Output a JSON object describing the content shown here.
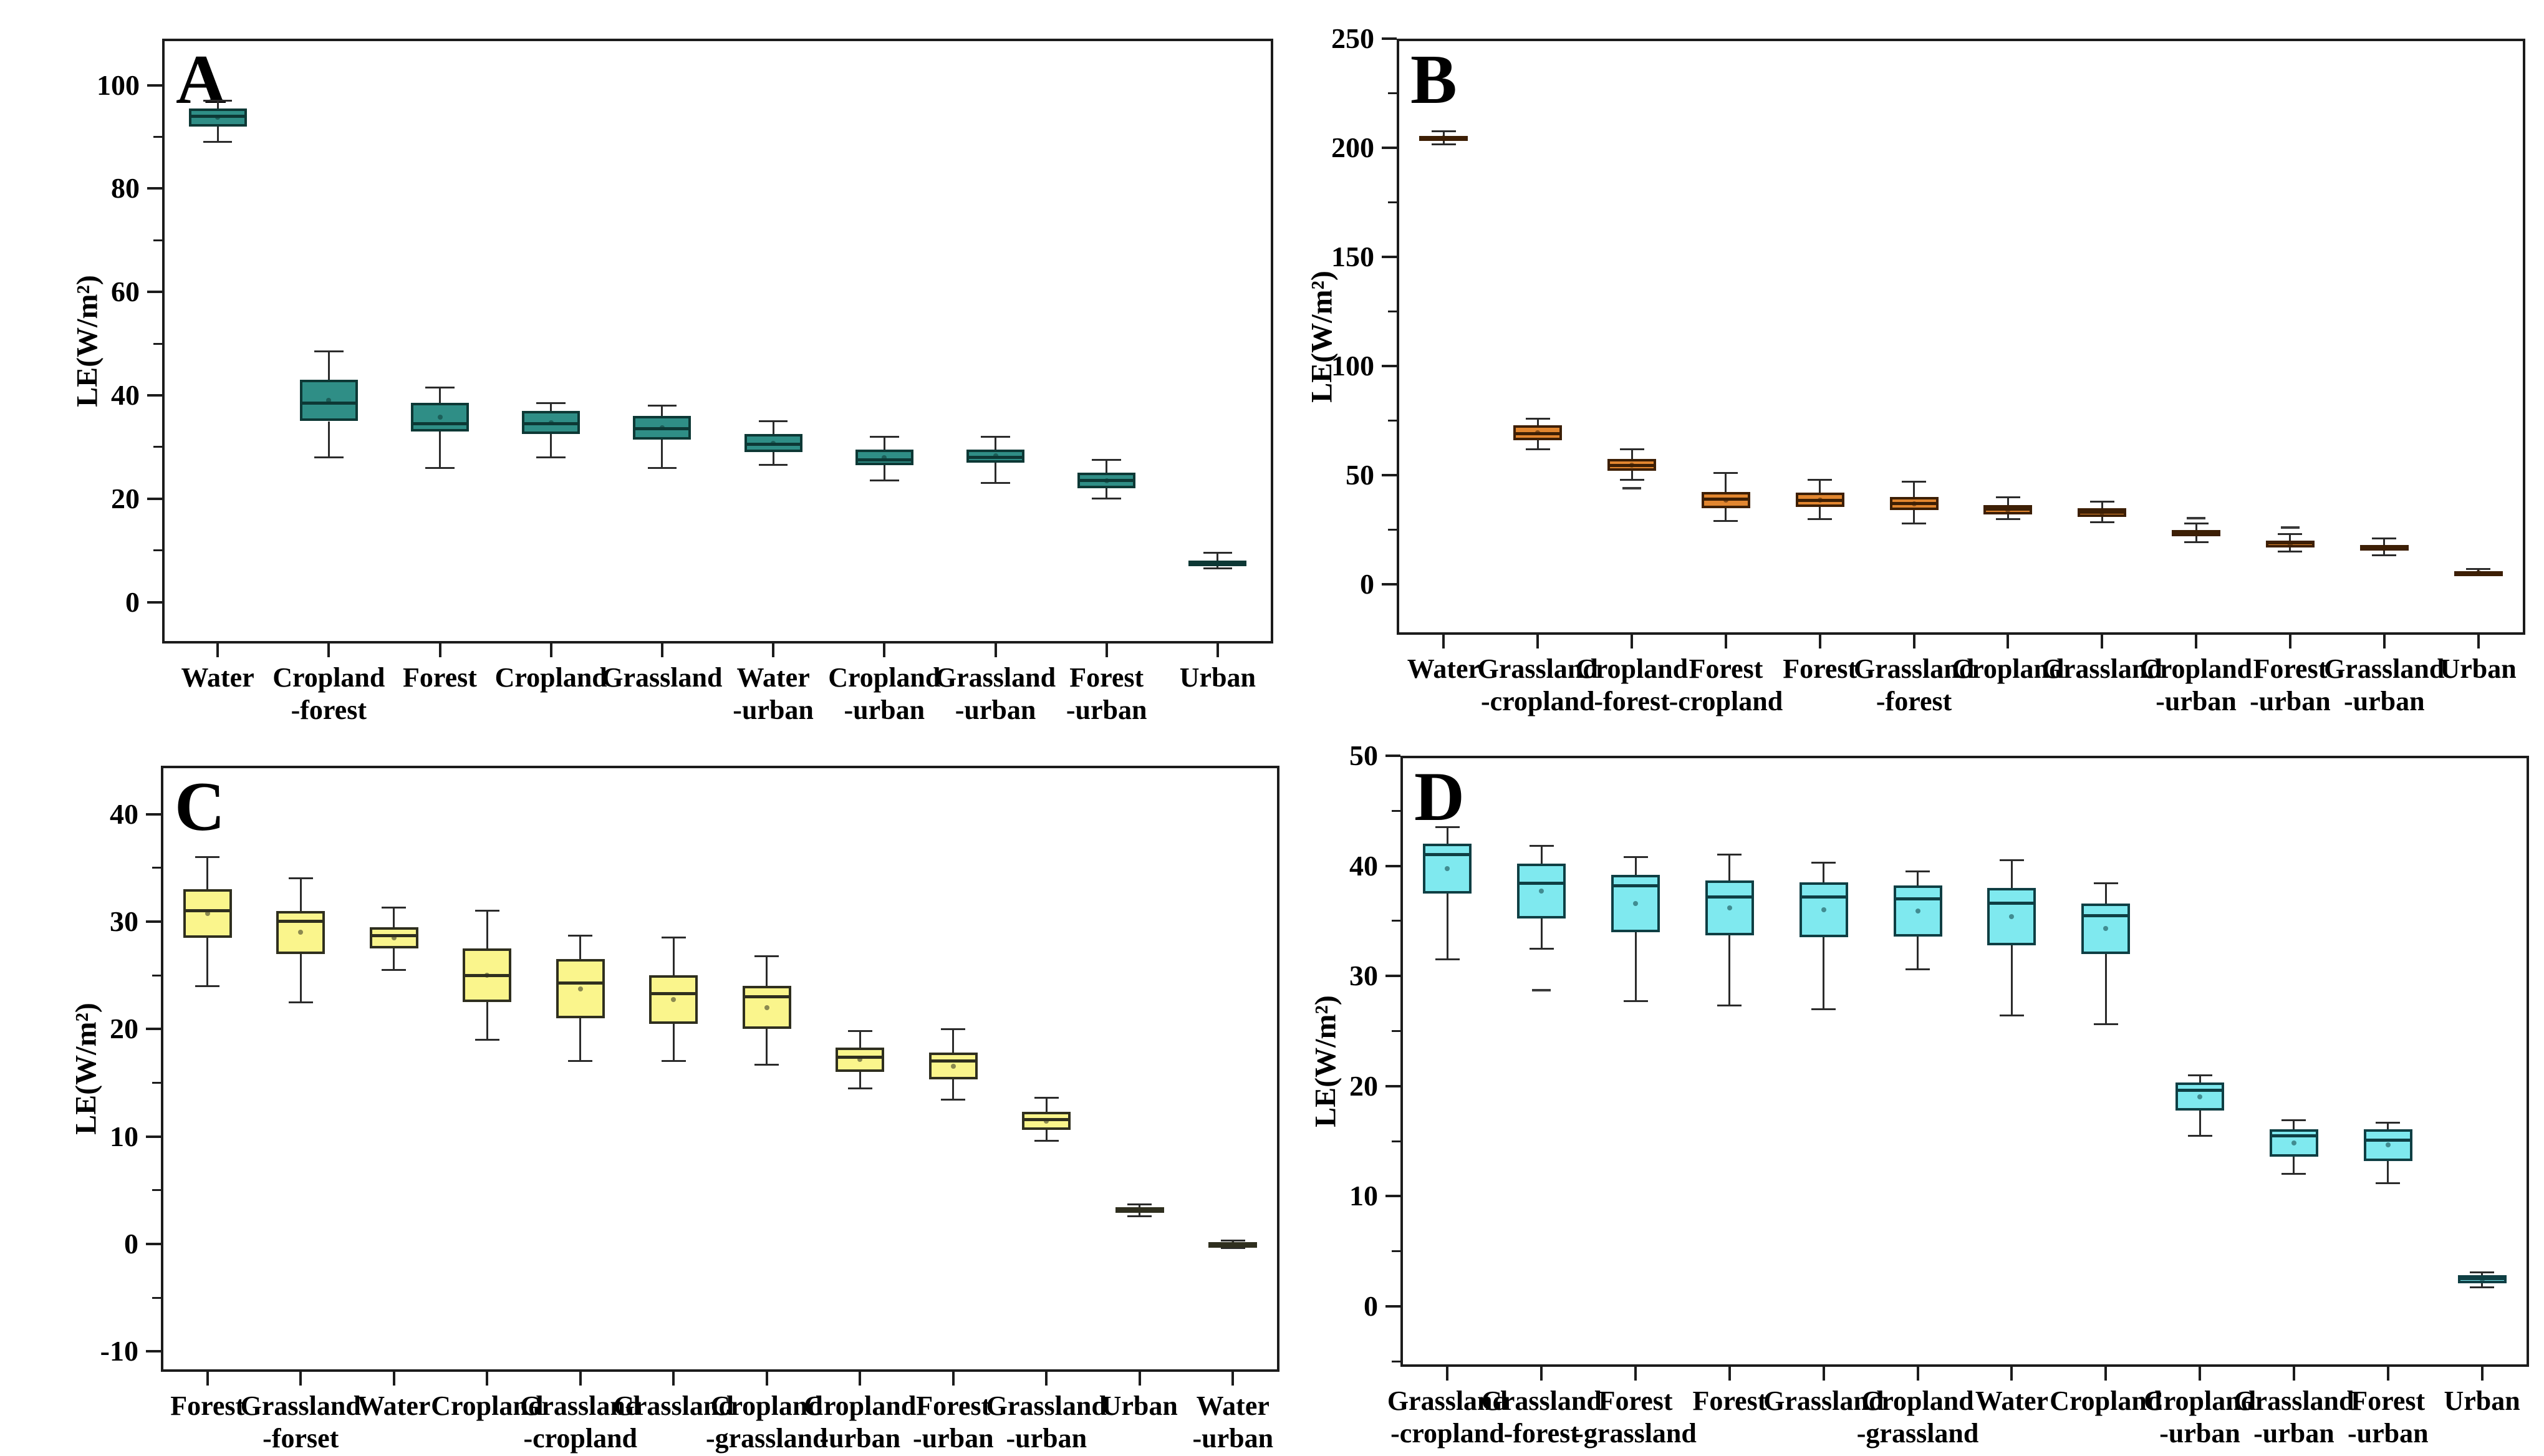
{
  "figure": {
    "background": "#ffffff",
    "ylabel_text": "LE(W/m²)"
  },
  "chart_data": [
    {
      "id": "A",
      "panel_label": "A",
      "type": "box",
      "box_fill": "#2F8E86",
      "box_border": "#0D3835",
      "median_color": "#0D3835",
      "whisker_color": "#2b2b2b",
      "ylabel": "LE(W/m²)",
      "ylim": [
        -8,
        109
      ],
      "yticks": [
        0,
        20,
        40,
        60,
        80,
        100
      ],
      "minor_step": 10,
      "grid": false,
      "categories": [
        [
          "Water"
        ],
        [
          "Cropland",
          "-forest"
        ],
        [
          "Forest"
        ],
        [
          "Cropland"
        ],
        [
          "Grassland"
        ],
        [
          "Water",
          "-urban"
        ],
        [
          "Cropland",
          "-urban"
        ],
        [
          "Grassland",
          "-urban"
        ],
        [
          "Forest",
          "-urban"
        ],
        [
          "Urban"
        ]
      ],
      "boxes": [
        {
          "low": 89,
          "q1": 92,
          "median": 94,
          "q3": 95.5,
          "high": 97,
          "mean": 93.75,
          "outliers": []
        },
        {
          "low": 28,
          "q1": 35,
          "median": 38.5,
          "q3": 43,
          "high": 48.5,
          "mean": 39,
          "outliers": []
        },
        {
          "low": 26,
          "q1": 33,
          "median": 34.5,
          "q3": 38.5,
          "high": 41.5,
          "mean": 35.75,
          "outliers": []
        },
        {
          "low": 28,
          "q1": 32.5,
          "median": 34.5,
          "q3": 37,
          "high": 38.5,
          "mean": 34.75,
          "outliers": []
        },
        {
          "low": 26,
          "q1": 31.5,
          "median": 33.5,
          "q3": 36,
          "high": 38,
          "mean": 33.75,
          "outliers": []
        },
        {
          "low": 26.5,
          "q1": 29,
          "median": 30.5,
          "q3": 32.5,
          "high": 35,
          "mean": 30.75,
          "outliers": []
        },
        {
          "low": 23.5,
          "q1": 26.5,
          "median": 27.5,
          "q3": 29.5,
          "high": 32,
          "mean": 28,
          "outliers": []
        },
        {
          "low": 23,
          "q1": 27,
          "median": 28,
          "q3": 29.5,
          "high": 32,
          "mean": 28.25,
          "outliers": []
        },
        {
          "low": 20,
          "q1": 22,
          "median": 23.5,
          "q3": 25,
          "high": 27.5,
          "mean": 23.5,
          "outliers": []
        },
        {
          "low": 6.5,
          "q1": 7,
          "median": 7.5,
          "q3": 8,
          "high": 9.5,
          "mean": 7.5,
          "outliers": []
        }
      ]
    },
    {
      "id": "B",
      "panel_label": "B",
      "type": "box",
      "box_fill": "#E2862F",
      "box_border": "#3D1F05",
      "median_color": "#3D1F05",
      "whisker_color": "#2b2b2b",
      "ylabel": "LE(W/m²)",
      "ylim": [
        -23,
        250
      ],
      "yticks": [
        0,
        50,
        100,
        150,
        200,
        250
      ],
      "minor_step": 25,
      "grid": false,
      "categories": [
        [
          "Water"
        ],
        [
          "Grassland",
          "-cropland"
        ],
        [
          "Cropland",
          "-forest"
        ],
        [
          "Forest",
          "-cropland"
        ],
        [
          "Forest"
        ],
        [
          "Grassland",
          "-forest"
        ],
        [
          "Cropland"
        ],
        [
          "Grassland"
        ],
        [
          "Cropland",
          "-urban"
        ],
        [
          "Forest",
          "-urban"
        ],
        [
          "Grassland",
          "-urban"
        ],
        [
          "Urban"
        ]
      ],
      "boxes": [
        {
          "low": 201.5,
          "q1": 203.5,
          "median": 204.5,
          "q3": 205.5,
          "high": 207.5,
          "mean": 204.5,
          "outliers": []
        },
        {
          "low": 62,
          "q1": 66,
          "median": 69,
          "q3": 73,
          "high": 76,
          "mean": 69.5,
          "outliers": []
        },
        {
          "low": 48,
          "q1": 52,
          "median": 54.5,
          "q3": 57.5,
          "high": 62,
          "mean": 54.75,
          "outliers": [
            44
          ]
        },
        {
          "low": 29,
          "q1": 35,
          "median": 39,
          "q3": 42.5,
          "high": 51,
          "mean": 38.75,
          "outliers": []
        },
        {
          "low": 30,
          "q1": 35.5,
          "median": 38.5,
          "q3": 42,
          "high": 48,
          "mean": 38.75,
          "outliers": []
        },
        {
          "low": 28,
          "q1": 34,
          "median": 37,
          "q3": 40,
          "high": 47,
          "mean": 37,
          "outliers": []
        },
        {
          "low": 30,
          "q1": 32,
          "median": 34.5,
          "q3": 36.5,
          "high": 40,
          "mean": 34.25,
          "outliers": []
        },
        {
          "low": 28.5,
          "q1": 31,
          "median": 33,
          "q3": 35,
          "high": 38,
          "mean": 33,
          "outliers": []
        },
        {
          "low": 19.5,
          "q1": 22,
          "median": 23.5,
          "q3": 25,
          "high": 28,
          "mean": 23.5,
          "outliers": [
            30.5
          ]
        },
        {
          "low": 15,
          "q1": 17,
          "median": 19,
          "q3": 20,
          "high": 23,
          "mean": 18.5,
          "outliers": [
            26
          ]
        },
        {
          "low": 13.5,
          "q1": 15.5,
          "median": 17,
          "q3": 18,
          "high": 21,
          "mean": 16.75,
          "outliers": []
        },
        {
          "low": 4.5,
          "q1": 5,
          "median": 5.5,
          "q3": 6,
          "high": 7,
          "mean": 5.5,
          "outliers": []
        }
      ]
    },
    {
      "id": "C",
      "panel_label": "C",
      "type": "box",
      "box_fill": "#FAF58C",
      "box_border": "#2F2F1F",
      "median_color": "#2F2F1F",
      "whisker_color": "#2b2b2b",
      "ylabel": "LE(W/m²)",
      "ylim": [
        -11.9,
        44.5
      ],
      "yticks": [
        -10,
        0,
        10,
        20,
        30,
        40
      ],
      "minor_step": 5,
      "grid": false,
      "categories": [
        [
          "Forest"
        ],
        [
          "Grassland",
          "-forset"
        ],
        [
          "Water"
        ],
        [
          "Cropland"
        ],
        [
          "Grassland",
          "-cropland"
        ],
        [
          "Grassland"
        ],
        [
          "Cropland",
          "-grassland"
        ],
        [
          "Cropland",
          "-urban"
        ],
        [
          "Forest",
          "-urban"
        ],
        [
          "Grassland",
          "-urban"
        ],
        [
          "Urban"
        ],
        [
          "Water",
          "-urban"
        ]
      ],
      "boxes": [
        {
          "low": 24,
          "q1": 28.5,
          "median": 31,
          "q3": 33,
          "high": 36,
          "mean": 30.75,
          "outliers": []
        },
        {
          "low": 22.5,
          "q1": 27,
          "median": 30,
          "q3": 31,
          "high": 34,
          "mean": 29,
          "outliers": []
        },
        {
          "low": 25.5,
          "q1": 27.5,
          "median": 28.7,
          "q3": 29.5,
          "high": 31.3,
          "mean": 28.5,
          "outliers": []
        },
        {
          "low": 19,
          "q1": 22.5,
          "median": 25,
          "q3": 27.5,
          "high": 31,
          "mean": 25,
          "outliers": []
        },
        {
          "low": 17,
          "q1": 21,
          "median": 24.3,
          "q3": 26.5,
          "high": 28.7,
          "mean": 23.75,
          "outliers": []
        },
        {
          "low": 17,
          "q1": 20.5,
          "median": 23.3,
          "q3": 25,
          "high": 28.5,
          "mean": 22.75,
          "outliers": []
        },
        {
          "low": 16.7,
          "q1": 20,
          "median": 23,
          "q3": 24,
          "high": 26.8,
          "mean": 22,
          "outliers": []
        },
        {
          "low": 14.5,
          "q1": 16,
          "median": 17.4,
          "q3": 18.3,
          "high": 19.8,
          "mean": 17.15,
          "outliers": []
        },
        {
          "low": 13.4,
          "q1": 15.3,
          "median": 17,
          "q3": 17.8,
          "high": 20,
          "mean": 16.55,
          "outliers": []
        },
        {
          "low": 9.6,
          "q1": 10.6,
          "median": 11.6,
          "q3": 12.3,
          "high": 13.6,
          "mean": 11.45,
          "outliers": []
        },
        {
          "low": 2.6,
          "q1": 2.9,
          "median": 3.1,
          "q3": 3.4,
          "high": 3.7,
          "mean": 3.15,
          "outliers": []
        },
        {
          "low": -0.4,
          "q1": -0.15,
          "median": 0,
          "q3": 0.1,
          "high": 0.3,
          "mean": 0,
          "outliers": []
        }
      ]
    },
    {
      "id": "D",
      "panel_label": "D",
      "type": "box",
      "box_fill": "#7FE9EF",
      "box_border": "#0F3F44",
      "median_color": "#0F3F44",
      "whisker_color": "#2b2b2b",
      "ylabel": "LE(W/m²)",
      "ylim": [
        -5.5,
        50
      ],
      "yticks": [
        0,
        10,
        20,
        30,
        40,
        50
      ],
      "minor_step": 5,
      "grid": false,
      "categories": [
        [
          "Grassland",
          "-cropland"
        ],
        [
          "Grassland",
          "-forest"
        ],
        [
          "Forest",
          "-grassland"
        ],
        [
          "Forest"
        ],
        [
          "Grassland"
        ],
        [
          "Cropland",
          "-grassland"
        ],
        [
          "Water"
        ],
        [
          "Cropland"
        ],
        [
          "Cropland",
          "-urban"
        ],
        [
          "Grassland",
          "-urban"
        ],
        [
          "Forest",
          "-urban"
        ],
        [
          "Urban"
        ]
      ],
      "boxes": [
        {
          "low": 31.5,
          "q1": 37.5,
          "median": 41,
          "q3": 42,
          "high": 43.5,
          "mean": 39.75,
          "outliers": []
        },
        {
          "low": 32.5,
          "q1": 35.2,
          "median": 38.4,
          "q3": 40.2,
          "high": 41.8,
          "mean": 37.7,
          "outliers": [
            28.7
          ]
        },
        {
          "low": 27.7,
          "q1": 34,
          "median": 38.2,
          "q3": 39.2,
          "high": 40.8,
          "mean": 36.6,
          "outliers": []
        },
        {
          "low": 27.3,
          "q1": 33.7,
          "median": 37.2,
          "q3": 38.7,
          "high": 41,
          "mean": 36.2,
          "outliers": []
        },
        {
          "low": 27,
          "q1": 33.5,
          "median": 37.2,
          "q3": 38.5,
          "high": 40.3,
          "mean": 36,
          "outliers": []
        },
        {
          "low": 30.6,
          "q1": 33.6,
          "median": 37,
          "q3": 38.2,
          "high": 39.5,
          "mean": 35.9,
          "outliers": []
        },
        {
          "low": 26.4,
          "q1": 32.8,
          "median": 36.6,
          "q3": 38,
          "high": 40.5,
          "mean": 35.4,
          "outliers": []
        },
        {
          "low": 25.6,
          "q1": 32,
          "median": 35.5,
          "q3": 36.6,
          "high": 38.4,
          "mean": 34.3,
          "outliers": []
        },
        {
          "low": 15.5,
          "q1": 17.8,
          "median": 19.6,
          "q3": 20.3,
          "high": 21,
          "mean": 19.05,
          "outliers": []
        },
        {
          "low": 12,
          "q1": 13.6,
          "median": 15.5,
          "q3": 16.1,
          "high": 16.9,
          "mean": 14.85,
          "outliers": []
        },
        {
          "low": 11.2,
          "q1": 13.2,
          "median": 15.1,
          "q3": 16.1,
          "high": 16.7,
          "mean": 14.65,
          "outliers": []
        },
        {
          "low": 1.7,
          "q1": 2.1,
          "median": 2.5,
          "q3": 2.8,
          "high": 3.1,
          "mean": 2.45,
          "outliers": []
        }
      ]
    }
  ]
}
